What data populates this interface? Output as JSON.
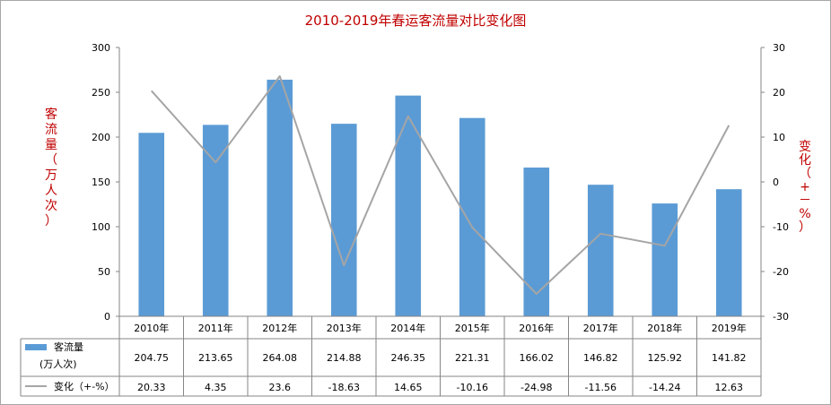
{
  "chart_data": {
    "type": "bar",
    "title": "2010-2019年春运客流量对比变化图",
    "categories": [
      "2010年",
      "2011年",
      "2012年",
      "2013年",
      "2014年",
      "2015年",
      "2016年",
      "2017年",
      "2018年",
      "2019年"
    ],
    "ylabel": "客流量（万人次）",
    "ylabel_right": "变化（+－%）",
    "ylim": [
      0,
      300
    ],
    "yticks": [
      "0",
      "50",
      "100",
      "150",
      "200",
      "250",
      "300"
    ],
    "ylim_right": [
      -30,
      30
    ],
    "yticks_right": [
      "-30",
      "-20",
      "-10",
      "0",
      "10",
      "20",
      "30"
    ],
    "grid": false,
    "legend": "data-table",
    "series": [
      {
        "name": "客流量",
        "name_line2": "(万人次)",
        "type": "bar",
        "color": "#5b9bd5",
        "axis": "left",
        "values": [
          204.75,
          213.65,
          264.08,
          214.88,
          246.35,
          221.31,
          166.02,
          146.82,
          125.92,
          141.82
        ],
        "labels": [
          "204.75",
          "213.65",
          "264.08",
          "214.88",
          "246.35",
          "221.31",
          "166.02",
          "146.82",
          "125.92",
          "141.82"
        ]
      },
      {
        "name": "变化（+-%）",
        "type": "line",
        "color": "#a5a5a5",
        "axis": "right",
        "values": [
          20.33,
          4.35,
          23.6,
          -18.63,
          14.65,
          -10.16,
          -24.98,
          -11.56,
          -14.24,
          12.63
        ],
        "labels": [
          "20.33",
          "4.35",
          "23.6",
          "-18.63",
          "14.65",
          "-10.16",
          "-24.98",
          "-11.56",
          "-14.24",
          "12.63"
        ]
      }
    ]
  }
}
